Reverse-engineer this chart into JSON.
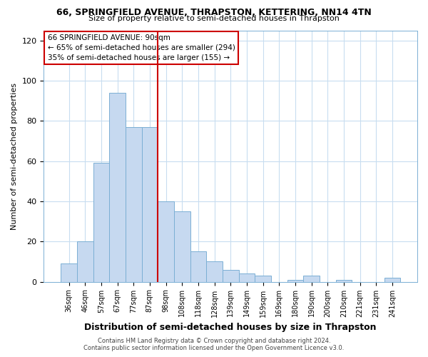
{
  "title1": "66, SPRINGFIELD AVENUE, THRAPSTON, KETTERING, NN14 4TN",
  "title2": "Size of property relative to semi-detached houses in Thrapston",
  "xlabel": "Distribution of semi-detached houses by size in Thrapston",
  "ylabel": "Number of semi-detached properties",
  "categories": [
    "36sqm",
    "46sqm",
    "57sqm",
    "67sqm",
    "77sqm",
    "87sqm",
    "98sqm",
    "108sqm",
    "118sqm",
    "128sqm",
    "139sqm",
    "149sqm",
    "159sqm",
    "169sqm",
    "180sqm",
    "190sqm",
    "200sqm",
    "210sqm",
    "221sqm",
    "231sqm",
    "241sqm"
  ],
  "values": [
    9,
    20,
    59,
    94,
    77,
    77,
    40,
    35,
    15,
    10,
    6,
    4,
    3,
    0,
    1,
    3,
    0,
    1,
    0,
    0,
    2
  ],
  "bar_color": "#c6d9f0",
  "bar_edge_color": "#7bafd4",
  "highlight_index": 5,
  "highlight_line_color": "#cc0000",
  "annotation_line1": "66 SPRINGFIELD AVENUE: 90sqm",
  "annotation_line2": "← 65% of semi-detached houses are smaller (294)",
  "annotation_line3": "35% of semi-detached houses are larger (155) →",
  "annotation_box_color": "#ffffff",
  "annotation_box_edge": "#cc0000",
  "ylim": [
    0,
    125
  ],
  "yticks": [
    0,
    20,
    40,
    60,
    80,
    100,
    120
  ],
  "footer1": "Contains HM Land Registry data © Crown copyright and database right 2024.",
  "footer2": "Contains public sector information licensed under the Open Government Licence v3.0.",
  "background_color": "#ffffff",
  "grid_color": "#c8ddf0"
}
